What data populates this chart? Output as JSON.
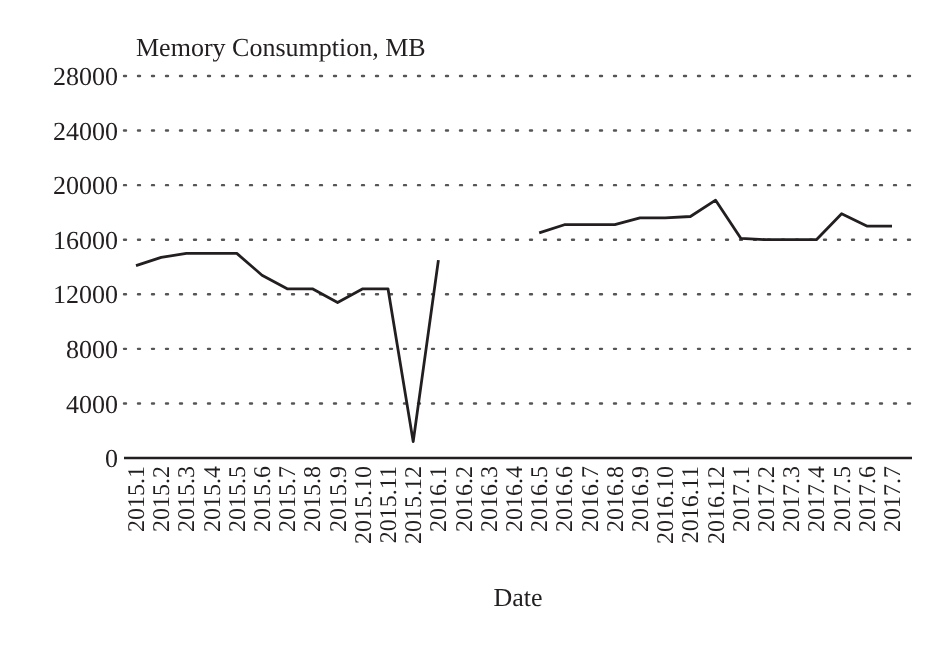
{
  "chart_data": {
    "type": "line",
    "ylabel": "Memory Consumption, MB",
    "xlabel": "Date",
    "categories": [
      "2015.1",
      "2015.2",
      "2015.3",
      "2015.4",
      "2015.5",
      "2015.6",
      "2015.7",
      "2015.8",
      "2015.9",
      "2015.10",
      "2015.11",
      "2015.12",
      "2016.1",
      "2016.2",
      "2016.3",
      "2016.4",
      "2016.5",
      "2016.6",
      "2016.7",
      "2016.8",
      "2016.9",
      "2016.10",
      "2016.11",
      "2016.12",
      "2017.1",
      "2017.2",
      "2017.3",
      "2017.4",
      "2017.5",
      "2017.6",
      "2017.7"
    ],
    "series": [
      {
        "color": "#231f20",
        "values": [
          14100,
          14700,
          15000,
          15000,
          15000,
          13400,
          12400,
          12400,
          11400,
          12400,
          12400,
          1200,
          14500,
          null,
          null,
          null,
          16500,
          17100,
          17100,
          17100,
          17600,
          17600,
          17700,
          18900,
          16100,
          16000,
          16000,
          16000,
          17900,
          17000,
          17000
        ]
      }
    ],
    "ylim": [
      0,
      28000
    ],
    "yticks": [
      0,
      4000,
      8000,
      12000,
      16000,
      20000,
      24000,
      28000
    ],
    "grid": "y",
    "marker": "none",
    "line_style": "solid"
  }
}
